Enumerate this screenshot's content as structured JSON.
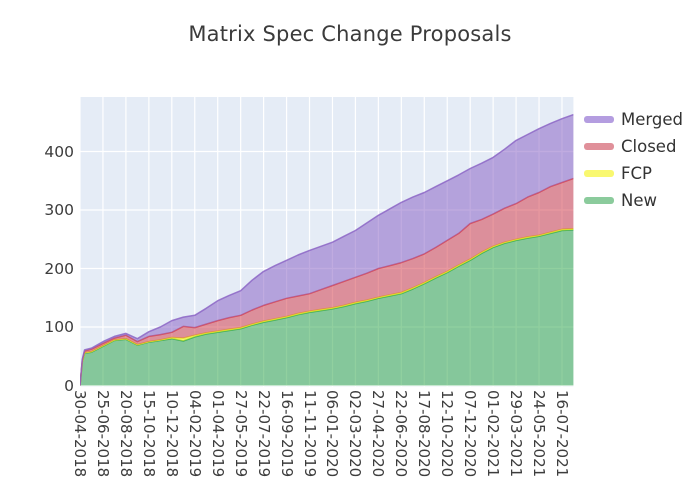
{
  "title": "Matrix Spec Change Proposals",
  "legend": {
    "items": [
      {
        "label": "Merged",
        "color": "#b49de0"
      },
      {
        "label": "Closed",
        "color": "#e0909a"
      },
      {
        "label": "FCP",
        "color": "#f9f870"
      },
      {
        "label": "New",
        "color": "#8bcb9c"
      }
    ]
  },
  "y_axis": {
    "tick_labels": [
      "0",
      "100",
      "200",
      "300",
      "400"
    ],
    "tick_values": [
      0,
      100,
      200,
      300,
      400
    ]
  },
  "x_axis": {
    "tick_labels": [
      "30-04-2018",
      "25-06-2018",
      "20-08-2018",
      "15-10-2018",
      "10-12-2018",
      "04-02-2019",
      "01-04-2019",
      "27-05-2019",
      "22-07-2019",
      "16-09-2019",
      "11-11-2019",
      "06-01-2020",
      "02-03-2020",
      "27-04-2020",
      "22-06-2020",
      "17-08-2020",
      "12-10-2020",
      "07-12-2020",
      "01-02-2021",
      "29-03-2021",
      "24-05-2021",
      "16-07-2021"
    ]
  },
  "chart_data": {
    "type": "area",
    "stacked": true,
    "title": "Matrix Spec Change Proposals",
    "background": "#e5ecf6",
    "gridline_color": "#ffffff",
    "grid": true,
    "fill_opacity": 0.55,
    "legend_position": "top-right",
    "ylim": [
      0,
      493
    ],
    "categories": [
      "30-04-2018",
      "25-06-2018",
      "20-08-2018",
      "15-10-2018",
      "10-12-2018",
      "04-02-2019",
      "01-04-2019",
      "27-05-2019",
      "22-07-2019",
      "16-09-2019",
      "11-11-2019",
      "06-01-2020",
      "02-03-2020",
      "27-04-2020",
      "22-06-2020",
      "17-08-2020",
      "12-10-2020",
      "07-12-2020",
      "01-02-2021",
      "29-03-2021",
      "24-05-2021",
      "16-07-2021"
    ],
    "sample_positions_in_tick_units": [
      0,
      0.1,
      0.2,
      0.5,
      1,
      1.5,
      2,
      2.5,
      3,
      3.5,
      4,
      4.5,
      5,
      5.5,
      6,
      6.5,
      7,
      7.5,
      8,
      8.5,
      9,
      9.5,
      10,
      10.5,
      11,
      11.5,
      12,
      12.5,
      13,
      13.5,
      14,
      14.5,
      15,
      15.5,
      16,
      16.5,
      17,
      17.5,
      18,
      18.5,
      19,
      19.5,
      20,
      20.5,
      21,
      21.5
    ],
    "series": [
      {
        "name": "New",
        "fill": "#36a950",
        "line": "#36a950",
        "values": [
          0,
          40,
          55,
          57,
          67,
          77,
          79,
          69,
          74,
          77,
          80,
          76,
          83,
          88,
          91,
          94,
          97,
          103,
          108,
          112,
          116,
          121,
          125,
          128,
          131,
          135,
          140,
          144,
          149,
          153,
          157,
          165,
          174,
          184,
          193,
          204,
          214,
          226,
          236,
          243,
          248,
          252,
          255,
          260,
          265,
          266
        ]
      },
      {
        "name": "FCP",
        "fill": "#ffff00",
        "line": "#e8df25",
        "values": [
          0,
          0,
          1,
          1,
          1,
          1,
          1,
          1,
          1,
          1,
          2,
          5,
          3,
          2,
          2,
          2,
          2,
          2,
          2,
          2,
          2,
          2,
          2,
          2,
          2,
          2,
          2,
          2,
          2,
          2,
          2,
          2,
          2,
          2,
          2,
          2,
          2,
          2,
          2,
          2,
          2,
          2,
          2,
          2,
          2,
          2
        ]
      },
      {
        "name": "Closed",
        "fill": "#d64350",
        "line": "#d64350",
        "values": [
          0,
          3,
          3,
          4,
          4,
          3,
          6,
          5,
          9,
          9,
          9,
          20,
          13,
          15,
          18,
          20,
          21,
          24,
          27,
          29,
          31,
          30,
          30,
          34,
          38,
          41,
          43,
          46,
          49,
          50,
          51,
          50,
          49,
          50,
          53,
          54,
          61,
          56,
          55,
          58,
          61,
          68,
          73,
          78,
          80,
          86
        ]
      },
      {
        "name": "Merged",
        "fill": "#8c66c6",
        "line": "#8c66c6",
        "values": [
          0,
          2,
          2,
          2,
          3,
          3,
          3,
          5,
          8,
          13,
          20,
          16,
          21,
          27,
          34,
          38,
          42,
          51,
          58,
          62,
          65,
          70,
          74,
          74,
          74,
          77,
          80,
          86,
          91,
          97,
          103,
          105,
          105,
          104,
          102,
          100,
          94,
          96,
          97,
          101,
          108,
          107,
          109,
          108,
          109,
          109
        ]
      }
    ]
  }
}
